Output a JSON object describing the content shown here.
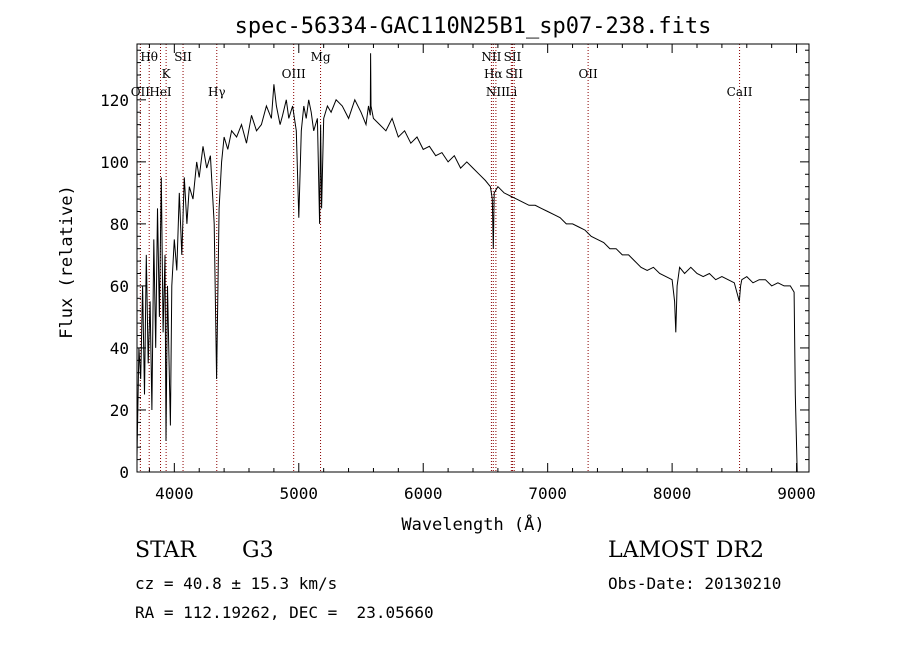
{
  "chart_data": {
    "type": "line",
    "title": "spec-56334-GAC110N25B1_sp07-238.fits",
    "xlabel": "Wavelength (Å)",
    "ylabel": "Flux (relative)",
    "xlim": [
      3700,
      9100
    ],
    "ylim": [
      0,
      138
    ],
    "x_ticks": [
      4000,
      5000,
      6000,
      7000,
      8000,
      9000
    ],
    "y_ticks": [
      0,
      20,
      40,
      60,
      80,
      100,
      120
    ],
    "line_color": "#000000",
    "marker_color": "#8b0000",
    "grid": false,
    "spectrum": {
      "x": [
        3700,
        3715,
        3730,
        3745,
        3760,
        3775,
        3790,
        3805,
        3820,
        3835,
        3850,
        3865,
        3880,
        3895,
        3910,
        3925,
        3933,
        3945,
        3960,
        3968,
        3980,
        4000,
        4020,
        4040,
        4060,
        4080,
        4101,
        4120,
        4150,
        4180,
        4200,
        4230,
        4260,
        4290,
        4320,
        4340,
        4360,
        4380,
        4400,
        4430,
        4460,
        4500,
        4540,
        4580,
        4620,
        4660,
        4700,
        4740,
        4780,
        4800,
        4820,
        4850,
        4870,
        4900,
        4920,
        4950,
        4980,
        5000,
        5020,
        5040,
        5060,
        5080,
        5100,
        5120,
        5150,
        5167,
        5175,
        5183,
        5200,
        5230,
        5260,
        5300,
        5350,
        5400,
        5450,
        5500,
        5540,
        5560,
        5575,
        5577,
        5580,
        5600,
        5650,
        5700,
        5750,
        5800,
        5850,
        5900,
        5950,
        6000,
        6050,
        6100,
        6150,
        6200,
        6250,
        6300,
        6350,
        6400,
        6450,
        6500,
        6540,
        6555,
        6563,
        6570,
        6600,
        6650,
        6700,
        6750,
        6800,
        6850,
        6900,
        6950,
        7000,
        7050,
        7100,
        7150,
        7200,
        7250,
        7300,
        7350,
        7400,
        7450,
        7500,
        7550,
        7600,
        7650,
        7700,
        7750,
        7800,
        7850,
        7900,
        7950,
        8000,
        8020,
        8030,
        8040,
        8060,
        8100,
        8150,
        8200,
        8250,
        8300,
        8350,
        8400,
        8450,
        8500,
        8540,
        8550,
        8560,
        8600,
        8650,
        8700,
        8750,
        8800,
        8850,
        8900,
        8950,
        8980,
        8990,
        9000,
        9005
      ],
      "y": [
        5,
        40,
        30,
        60,
        25,
        70,
        35,
        55,
        20,
        75,
        40,
        85,
        50,
        95,
        45,
        70,
        10,
        60,
        30,
        15,
        60,
        75,
        65,
        90,
        70,
        95,
        80,
        92,
        88,
        100,
        95,
        105,
        98,
        102,
        80,
        30,
        85,
        100,
        108,
        104,
        110,
        108,
        112,
        106,
        115,
        110,
        112,
        118,
        114,
        125,
        118,
        112,
        115,
        120,
        114,
        118,
        110,
        82,
        110,
        118,
        114,
        120,
        116,
        110,
        114,
        80,
        112,
        85,
        114,
        118,
        116,
        120,
        118,
        114,
        120,
        116,
        112,
        118,
        115,
        135,
        118,
        114,
        112,
        110,
        114,
        108,
        110,
        106,
        108,
        104,
        105,
        102,
        103,
        100,
        102,
        98,
        100,
        98,
        96,
        94,
        92,
        88,
        72,
        90,
        92,
        90,
        89,
        88,
        87,
        86,
        86,
        85,
        84,
        83,
        82,
        80,
        80,
        79,
        78,
        76,
        75,
        74,
        72,
        72,
        70,
        70,
        68,
        66,
        65,
        66,
        64,
        63,
        62,
        55,
        45,
        60,
        66,
        64,
        66,
        64,
        63,
        64,
        62,
        63,
        62,
        61,
        55,
        60,
        62,
        63,
        61,
        62,
        62,
        60,
        61,
        60,
        60,
        58,
        25,
        8,
        0
      ]
    },
    "lines": [
      {
        "label": "Hθ",
        "x": 3798,
        "row": 1
      },
      {
        "label": "OII",
        "x": 3727,
        "row": 3
      },
      {
        "label": "HeI",
        "x": 3889,
        "row": 3
      },
      {
        "label": "K",
        "x": 3934,
        "row": 2
      },
      {
        "label": "SII",
        "x": 4070,
        "row": 1
      },
      {
        "label": "Hγ",
        "x": 4341,
        "row": 3
      },
      {
        "label": "OIII",
        "x": 4959,
        "row": 2
      },
      {
        "label": "Mg",
        "x": 5175,
        "row": 1
      },
      {
        "label": "NII",
        "x": 6548,
        "row": 1
      },
      {
        "label": "SII",
        "x": 6717,
        "row": 1
      },
      {
        "label": "Hα",
        "x": 6563,
        "row": 2
      },
      {
        "label": "SII",
        "x": 6731,
        "row": 2
      },
      {
        "label": "NII",
        "x": 6584,
        "row": 3
      },
      {
        "label": "Li",
        "x": 6708,
        "row": 3
      },
      {
        "label": "OII",
        "x": 7325,
        "row": 2
      },
      {
        "label": "CaII",
        "x": 8542,
        "row": 3
      }
    ]
  },
  "info": {
    "class": "STAR",
    "subclass": "G3",
    "survey": "LAMOST DR2",
    "cz": "cz = 40.8 ± 15.3 km/s",
    "obs_date": "Obs-Date: 20130210",
    "coords": "RA = 112.19262, DEC =  23.05660"
  }
}
